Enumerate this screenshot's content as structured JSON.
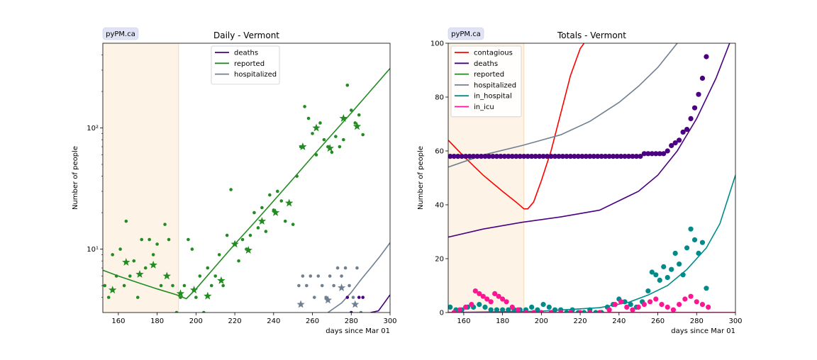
{
  "chart_data": [
    {
      "type": "line",
      "title": "Daily - Vermont",
      "badge": "pyPM.ca",
      "xlabel": "days since Mar 01",
      "ylabel": "Number of people",
      "xlim": [
        152,
        300
      ],
      "ylim": [
        3,
        500
      ],
      "yscale": "log",
      "x_ticks": [
        160,
        180,
        200,
        220,
        240,
        260,
        280,
        300
      ],
      "x_tick_labels": [
        "160",
        "180",
        "200",
        "220",
        "240",
        "260",
        "280",
        "300"
      ],
      "y_ticks": [
        10,
        100
      ],
      "y_tick_labels": [
        "10¹",
        "10²"
      ],
      "fit_window": [
        152,
        191
      ],
      "legend_position": "top-center",
      "grid": false,
      "series": [
        {
          "name": "deaths",
          "color": "#4b0082",
          "x": [
            290,
            294,
            297,
            300
          ],
          "y": [
            3,
            3.1,
            3.6,
            4.2
          ]
        },
        {
          "name": "reported",
          "color": "#228b22",
          "x": [
            152,
            160,
            170,
            180,
            190,
            195,
            200,
            210,
            220,
            230,
            240,
            250,
            260,
            270,
            280,
            290,
            300
          ],
          "y": [
            6.7,
            6.0,
            5.3,
            4.7,
            4.2,
            3.9,
            4.7,
            7.2,
            11,
            16.5,
            25,
            38,
            58,
            88,
            133,
            203,
            310
          ]
        },
        {
          "name": "hospitalized",
          "color": "#708090",
          "x": [
            268,
            275,
            280,
            285,
            290,
            295,
            300
          ],
          "y": [
            3,
            3.6,
            4.4,
            5.6,
            7.0,
            8.8,
            11.3
          ]
        }
      ],
      "reported_daily_points": {
        "color": "#228b22",
        "x": [
          153,
          155,
          157,
          159,
          161,
          163,
          164,
          166,
          168,
          170,
          172,
          174,
          176,
          178,
          180,
          182,
          184,
          186,
          188,
          190,
          192,
          194,
          196,
          198,
          200,
          202,
          204,
          206,
          208,
          210,
          212,
          214,
          216,
          218,
          220,
          222,
          224,
          226,
          228,
          230,
          232,
          234,
          236,
          238,
          240,
          242,
          244,
          246,
          248,
          250,
          252,
          254,
          256,
          258,
          260,
          262,
          264,
          266,
          268,
          270,
          272,
          274,
          276,
          278,
          280,
          282,
          284,
          286
        ],
        "y": [
          5,
          4,
          9,
          6,
          10,
          5,
          17,
          6,
          8,
          4,
          12,
          7,
          12,
          9,
          11,
          5,
          16,
          12,
          5,
          3,
          4,
          5,
          12,
          10,
          4,
          6,
          3,
          7,
          5,
          6,
          9,
          5,
          13,
          31,
          11,
          8,
          12,
          10,
          13,
          20,
          15,
          22,
          14,
          28,
          21,
          30,
          25,
          17,
          24,
          16,
          40,
          70,
          150,
          120,
          90,
          60,
          110,
          80,
          70,
          63,
          85,
          70,
          80,
          225,
          140,
          110,
          128,
          88
        ]
      },
      "reported_weekly_stars": {
        "color": "#228b22",
        "x": [
          157,
          164,
          171,
          178,
          185,
          192,
          199,
          206,
          213,
          220,
          227,
          234,
          241,
          248,
          255,
          262,
          269,
          276,
          283
        ],
        "y": [
          4.6,
          7.8,
          6.2,
          7.4,
          6.0,
          4.3,
          4.6,
          4.1,
          5.5,
          11,
          9.8,
          17,
          20,
          24,
          70,
          100,
          68,
          120,
          103
        ]
      },
      "hospitalized_points": {
        "color": "#708090",
        "x": [
          253,
          255,
          257,
          259,
          261,
          263,
          265,
          267,
          269,
          271,
          273,
          275,
          277,
          279,
          281,
          283,
          285
        ],
        "y": [
          5,
          6,
          5,
          6,
          4,
          6,
          5,
          4,
          6,
          5,
          7,
          6,
          7,
          5,
          4,
          7,
          3
        ]
      },
      "hospitalized_stars": {
        "color": "#708090",
        "x": [
          254,
          268,
          275,
          282
        ],
        "y": [
          3.5,
          3.8,
          4.8,
          3.5
        ]
      },
      "deaths_points": {
        "color": "#4b0082",
        "x": [
          278,
          280,
          284,
          286
        ],
        "y": [
          4,
          3,
          4,
          4
        ]
      }
    },
    {
      "type": "line",
      "title": "Totals - Vermont",
      "badge": "pyPM.ca",
      "xlabel": "days since Mar 01",
      "ylabel": "Number of people",
      "xlim": [
        152,
        300
      ],
      "ylim": [
        0,
        100
      ],
      "yscale": "linear",
      "x_ticks": [
        160,
        180,
        200,
        220,
        240,
        260,
        280,
        300
      ],
      "x_tick_labels": [
        "160",
        "180",
        "200",
        "220",
        "240",
        "260",
        "280",
        "300"
      ],
      "y_ticks": [
        0,
        20,
        40,
        60,
        80,
        100
      ],
      "y_tick_labels": [
        "0",
        "20",
        "40",
        "60",
        "80",
        "100"
      ],
      "fit_window": [
        152,
        191
      ],
      "legend_position": "top-left",
      "grid": false,
      "series": [
        {
          "name": "contagious",
          "color": "#ff0000",
          "x": [
            152,
            160,
            170,
            180,
            187,
            191,
            193,
            196,
            200,
            205,
            210,
            215,
            220,
            223
          ],
          "y": [
            64,
            58,
            51,
            45,
            41,
            38.5,
            38.5,
            41,
            49,
            60,
            74,
            88,
            98,
            101
          ]
        },
        {
          "name": "deaths",
          "color": "#4b0082",
          "x": [
            152,
            170,
            190,
            210,
            230,
            250,
            260,
            270,
            280,
            290,
            297,
            300
          ],
          "y": [
            28,
            31,
            33.5,
            35.5,
            38,
            45,
            51,
            60,
            72,
            87,
            100,
            104
          ]
        },
        {
          "name": "reported",
          "color": "#228b22",
          "x": [
            152,
            300
          ],
          "y": [
            0,
            0
          ]
        },
        {
          "name": "hospitalized",
          "color": "#708090",
          "x": [
            152,
            170,
            190,
            210,
            225,
            240,
            250,
            260,
            270,
            277,
            282
          ],
          "y": [
            54,
            58.5,
            62,
            66,
            71,
            78,
            84,
            91,
            100,
            107,
            113
          ]
        },
        {
          "name": "in_hospital",
          "color": "#008b8b",
          "x": [
            152,
            200,
            230,
            245,
            255,
            265,
            275,
            285,
            292,
            300
          ],
          "y": [
            0,
            0.5,
            1.8,
            3.8,
            6.5,
            10,
            16,
            24,
            33,
            51
          ]
        },
        {
          "name": "in_icu",
          "color": "#ff1493",
          "x": [
            152,
            300
          ],
          "y": [
            0,
            0
          ]
        }
      ],
      "deaths_points": {
        "color": "#4b0082",
        "x": [
          153,
          155,
          157,
          159,
          161,
          163,
          165,
          167,
          169,
          171,
          173,
          175,
          177,
          179,
          181,
          183,
          185,
          187,
          189,
          191,
          193,
          195,
          197,
          199,
          201,
          203,
          205,
          207,
          209,
          211,
          213,
          215,
          217,
          219,
          221,
          223,
          225,
          227,
          229,
          231,
          233,
          235,
          237,
          239,
          241,
          243,
          245,
          247,
          249,
          251,
          253,
          255,
          257,
          259,
          261,
          263,
          265,
          267,
          269,
          271,
          273,
          275,
          277,
          279,
          281,
          283,
          285
        ],
        "y": [
          58,
          58,
          58,
          58,
          58,
          58,
          58,
          58,
          58,
          58,
          58,
          58,
          58,
          58,
          58,
          58,
          58,
          58,
          58,
          58,
          58,
          58,
          58,
          58,
          58,
          58,
          58,
          58,
          58,
          58,
          58,
          58,
          58,
          58,
          58,
          58,
          58,
          58,
          58,
          58,
          58,
          58,
          58,
          58,
          58,
          58,
          58,
          58,
          58,
          58,
          59,
          59,
          59,
          59,
          59,
          59,
          60,
          62,
          63,
          64,
          67,
          68,
          72,
          76,
          81,
          87,
          95
        ]
      },
      "in_hospital_points": {
        "color": "#008b8b",
        "x": [
          153,
          156,
          159,
          162,
          165,
          168,
          171,
          174,
          177,
          180,
          183,
          186,
          189,
          192,
          195,
          198,
          201,
          204,
          207,
          210,
          213,
          216,
          219,
          222,
          225,
          228,
          231,
          234,
          237,
          240,
          243,
          246,
          249,
          252,
          255,
          257,
          259,
          261,
          263,
          265,
          267,
          269,
          271,
          273,
          275,
          277,
          279,
          281,
          283,
          285
        ],
        "y": [
          2,
          1,
          1,
          2,
          2,
          3,
          2,
          1,
          1,
          1,
          1,
          1,
          1,
          1,
          2,
          1,
          3,
          2,
          1,
          1,
          0,
          1,
          0,
          0,
          1,
          0,
          0,
          2,
          3,
          5,
          4,
          3,
          2,
          4,
          8,
          15,
          14,
          12,
          17,
          13,
          16,
          22,
          18,
          14,
          24,
          31,
          27,
          22,
          26,
          9
        ]
      },
      "in_icu_points": {
        "color": "#ff1493",
        "x": [
          155,
          158,
          161,
          164,
          166,
          168,
          170,
          172,
          174,
          176,
          178,
          180,
          182,
          185,
          188,
          192,
          196,
          200,
          205,
          210,
          215,
          220,
          225,
          230,
          235,
          238,
          241,
          244,
          247,
          250,
          253,
          256,
          259,
          262,
          265,
          268,
          271,
          274,
          277,
          280,
          283,
          286
        ],
        "y": [
          0,
          1,
          2,
          3,
          8,
          7,
          6,
          5,
          4,
          7,
          6,
          5,
          4,
          2,
          1,
          0,
          0,
          0,
          0,
          0,
          0,
          0,
          0,
          0,
          1,
          3,
          4,
          2,
          1,
          2,
          3,
          4,
          5,
          3,
          2,
          1,
          3,
          5,
          6,
          4,
          3,
          2
        ]
      }
    }
  ]
}
